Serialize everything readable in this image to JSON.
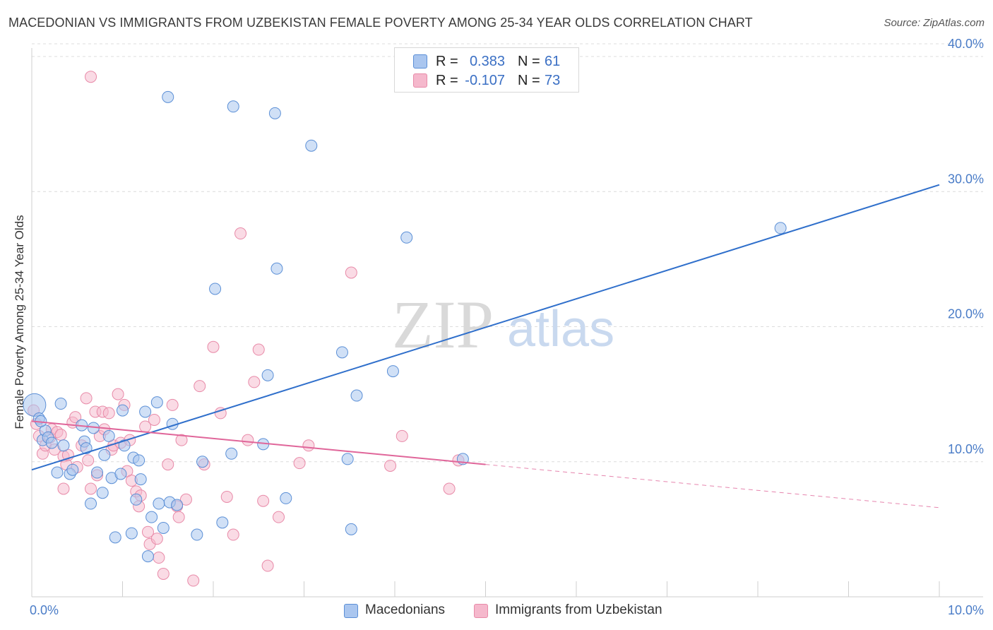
{
  "title": "MACEDONIAN VS IMMIGRANTS FROM UZBEKISTAN FEMALE POVERTY AMONG 25-34 YEAR OLDS CORRELATION CHART",
  "source": "Source: ZipAtlas.com",
  "watermark": {
    "zip": "ZIP",
    "atlas": "atlas"
  },
  "colors": {
    "blue_fill": "#aac6ef",
    "blue_stroke": "#5b8fd6",
    "blue_line": "#2f6fcb",
    "pink_fill": "#f5b8cc",
    "pink_stroke": "#e88aa8",
    "pink_line": "#e0669a",
    "grid": "#dcdcdc",
    "tick_text": "#4a7cc7"
  },
  "stats": {
    "rows": [
      {
        "r_label": "R =",
        "r_value": "0.383",
        "n_label": "N =",
        "n_value": "61"
      },
      {
        "r_label": "R =",
        "r_value": "-0.107",
        "n_label": "N =",
        "n_value": "73"
      }
    ]
  },
  "legend": [
    {
      "label": "Macedonians"
    },
    {
      "label": "Immigrants from Uzbekistan"
    }
  ],
  "chart_data": {
    "type": "scatter",
    "title": "MACEDONIAN VS IMMIGRANTS FROM UZBEKISTAN FEMALE POVERTY AMONG 25-34 YEAR OLDS CORRELATION CHART",
    "xlabel": "",
    "ylabel": "Female Poverty Among 25-34 Year Olds",
    "xlim": [
      0,
      10
    ],
    "ylim": [
      0,
      40
    ],
    "x_tick_labels": [
      {
        "value": 0,
        "label": "0.0%"
      },
      {
        "value": 10,
        "label": "10.0%"
      }
    ],
    "y_tick_labels": [
      {
        "value": 10,
        "label": "10.0%"
      },
      {
        "value": 20,
        "label": "20.0%"
      },
      {
        "value": 30,
        "label": "30.0%"
      },
      {
        "value": 40,
        "label": "40.0%"
      }
    ],
    "grid": true,
    "legend_position": "bottom",
    "series": [
      {
        "name": "Macedonians",
        "color": "#aac6ef",
        "trend": {
          "x": [
            0,
            10
          ],
          "y": [
            9.4,
            30.5
          ],
          "dashed_from": null
        },
        "points": [
          [
            0.03,
            14.2
          ],
          [
            0.08,
            13.2
          ],
          [
            0.12,
            11.6
          ],
          [
            0.15,
            12.3
          ],
          [
            0.18,
            11.8
          ],
          [
            0.22,
            11.4
          ],
          [
            0.28,
            9.2
          ],
          [
            0.32,
            14.3
          ],
          [
            0.35,
            11.2
          ],
          [
            0.42,
            9.1
          ],
          [
            0.45,
            9.4
          ],
          [
            0.55,
            12.7
          ],
          [
            0.58,
            11.5
          ],
          [
            0.6,
            11.0
          ],
          [
            0.65,
            6.9
          ],
          [
            0.68,
            12.5
          ],
          [
            0.72,
            9.2
          ],
          [
            0.78,
            7.7
          ],
          [
            0.8,
            10.5
          ],
          [
            0.85,
            11.9
          ],
          [
            0.88,
            8.8
          ],
          [
            0.92,
            4.4
          ],
          [
            0.98,
            9.1
          ],
          [
            1.0,
            13.8
          ],
          [
            1.02,
            11.2
          ],
          [
            1.1,
            4.7
          ],
          [
            1.12,
            10.3
          ],
          [
            1.15,
            7.2
          ],
          [
            1.18,
            10.1
          ],
          [
            1.2,
            8.7
          ],
          [
            1.25,
            13.7
          ],
          [
            1.28,
            3.0
          ],
          [
            1.32,
            5.9
          ],
          [
            1.38,
            14.4
          ],
          [
            1.4,
            6.9
          ],
          [
            1.45,
            5.1
          ],
          [
            1.5,
            37.0
          ],
          [
            1.52,
            7.0
          ],
          [
            1.55,
            12.8
          ],
          [
            1.6,
            6.8
          ],
          [
            1.82,
            4.6
          ],
          [
            1.88,
            10.0
          ],
          [
            2.02,
            22.8
          ],
          [
            2.1,
            5.5
          ],
          [
            2.2,
            10.6
          ],
          [
            2.22,
            36.3
          ],
          [
            2.55,
            11.3
          ],
          [
            2.6,
            16.4
          ],
          [
            2.68,
            35.8
          ],
          [
            2.7,
            24.3
          ],
          [
            2.8,
            7.3
          ],
          [
            3.08,
            33.4
          ],
          [
            3.42,
            18.1
          ],
          [
            3.48,
            10.2
          ],
          [
            3.52,
            5.0
          ],
          [
            3.58,
            14.9
          ],
          [
            3.98,
            16.7
          ],
          [
            4.13,
            26.6
          ],
          [
            4.75,
            10.2
          ],
          [
            8.25,
            27.3
          ],
          [
            0.1,
            13.0
          ]
        ]
      },
      {
        "name": "Immigrants from Uzbekistan",
        "color": "#f5b8cc",
        "trend": {
          "x": [
            0,
            10
          ],
          "y": [
            13.0,
            6.6
          ],
          "dashed_from": 5.0
        },
        "points": [
          [
            0.02,
            13.8
          ],
          [
            0.05,
            12.8
          ],
          [
            0.08,
            11.9
          ],
          [
            0.12,
            10.6
          ],
          [
            0.15,
            11.2
          ],
          [
            0.2,
            11.8
          ],
          [
            0.22,
            12.4
          ],
          [
            0.25,
            10.9
          ],
          [
            0.28,
            12.2
          ],
          [
            0.32,
            12.0
          ],
          [
            0.35,
            10.4
          ],
          [
            0.38,
            9.8
          ],
          [
            0.4,
            10.5
          ],
          [
            0.45,
            12.9
          ],
          [
            0.48,
            13.3
          ],
          [
            0.5,
            9.6
          ],
          [
            0.55,
            11.2
          ],
          [
            0.6,
            14.7
          ],
          [
            0.62,
            10.1
          ],
          [
            0.65,
            8.0
          ],
          [
            0.7,
            13.7
          ],
          [
            0.72,
            9.0
          ],
          [
            0.75,
            11.9
          ],
          [
            0.78,
            13.7
          ],
          [
            0.8,
            12.4
          ],
          [
            0.85,
            13.6
          ],
          [
            0.88,
            10.9
          ],
          [
            0.9,
            11.2
          ],
          [
            0.95,
            15.0
          ],
          [
            0.98,
            11.4
          ],
          [
            1.02,
            14.2
          ],
          [
            1.05,
            9.3
          ],
          [
            1.08,
            11.6
          ],
          [
            1.1,
            8.6
          ],
          [
            1.15,
            7.8
          ],
          [
            1.18,
            6.7
          ],
          [
            1.2,
            7.5
          ],
          [
            1.25,
            12.6
          ],
          [
            1.28,
            4.8
          ],
          [
            1.3,
            3.9
          ],
          [
            1.35,
            13.1
          ],
          [
            1.38,
            4.3
          ],
          [
            1.4,
            2.9
          ],
          [
            1.45,
            1.7
          ],
          [
            1.5,
            9.8
          ],
          [
            1.55,
            14.2
          ],
          [
            1.6,
            6.7
          ],
          [
            1.62,
            5.9
          ],
          [
            1.65,
            11.6
          ],
          [
            1.7,
            7.2
          ],
          [
            1.78,
            1.2
          ],
          [
            1.85,
            15.6
          ],
          [
            1.9,
            9.8
          ],
          [
            2.0,
            18.5
          ],
          [
            2.08,
            13.6
          ],
          [
            2.15,
            7.4
          ],
          [
            2.22,
            4.6
          ],
          [
            2.3,
            26.9
          ],
          [
            2.38,
            11.6
          ],
          [
            2.45,
            15.9
          ],
          [
            2.5,
            18.3
          ],
          [
            2.55,
            7.1
          ],
          [
            2.6,
            2.3
          ],
          [
            2.72,
            5.9
          ],
          [
            2.95,
            9.9
          ],
          [
            3.05,
            11.2
          ],
          [
            3.52,
            24.0
          ],
          [
            3.95,
            9.7
          ],
          [
            4.08,
            11.9
          ],
          [
            4.6,
            8.0
          ],
          [
            4.7,
            10.1
          ],
          [
            0.35,
            8.0
          ],
          [
            0.65,
            38.5
          ]
        ]
      }
    ]
  }
}
